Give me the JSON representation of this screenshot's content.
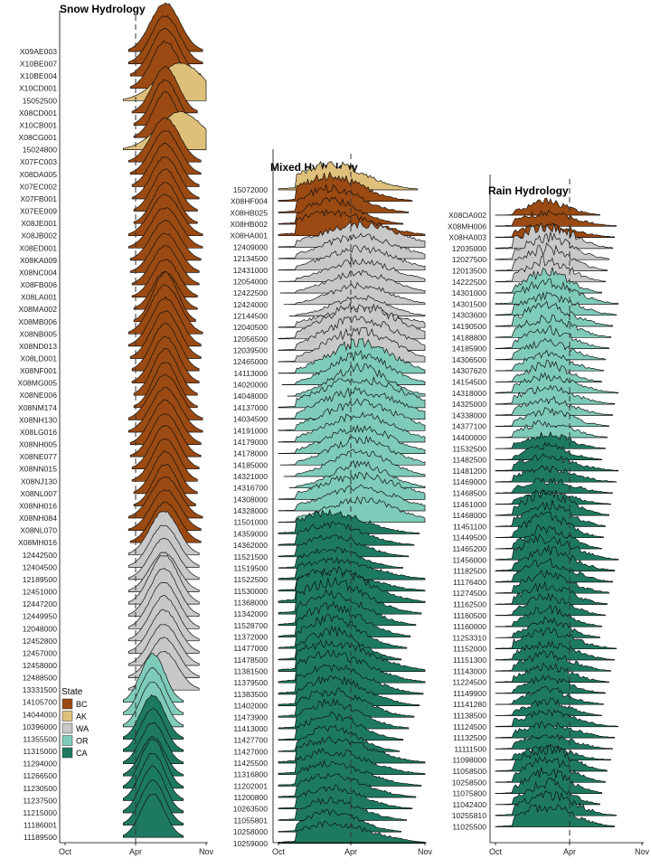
{
  "chart_data": [
    {
      "type": "area",
      "subtype": "ridgeline",
      "title": "Snow Hydrology",
      "x_ticks": [
        "Oct",
        "Apr",
        "Nov"
      ],
      "reference_line": "Apr",
      "categories": [
        "X09AE003",
        "X10BE007",
        "X10BE004",
        "X10CD001",
        "15052500",
        "X08CD001",
        "X10CB001",
        "X08CG001",
        "15024800",
        "X07FC003",
        "X08DA005",
        "X07EC002",
        "X07FB001",
        "X07EE009",
        "X08JE001",
        "X08JB002",
        "X08ED001",
        "X08KA009",
        "X08NC004",
        "X08FB006",
        "X08LA001",
        "X08MA002",
        "X08MB006",
        "X08NB005",
        "X08ND013",
        "X08LD001",
        "X08NF001",
        "X08MG005",
        "X08NE006",
        "X08NM174",
        "X08NH130",
        "X08LG016",
        "X08NH005",
        "X08NE077",
        "X08NN015",
        "X08NJ130",
        "X08NL007",
        "X08NH016",
        "X08NH084",
        "X08NL070",
        "X08MH016",
        "12442500",
        "12404500",
        "12189500",
        "12451000",
        "12447200",
        "12449950",
        "12048000",
        "12452800",
        "12457000",
        "12458000",
        "12488500",
        "13331500",
        "14105700",
        "14044000",
        "10396000",
        "11355500",
        "11315000",
        "11294000",
        "11266500",
        "11230500",
        "11237500",
        "11215000",
        "11186001",
        "11189500"
      ],
      "states": [
        "BC",
        "BC",
        "BC",
        "BC",
        "AK",
        "BC",
        "BC",
        "BC",
        "AK",
        "BC",
        "BC",
        "BC",
        "BC",
        "BC",
        "BC",
        "BC",
        "BC",
        "BC",
        "BC",
        "BC",
        "BC",
        "BC",
        "BC",
        "BC",
        "BC",
        "BC",
        "BC",
        "BC",
        "BC",
        "BC",
        "BC",
        "BC",
        "BC",
        "BC",
        "BC",
        "BC",
        "BC",
        "BC",
        "BC",
        "BC",
        "BC",
        "WA",
        "WA",
        "WA",
        "WA",
        "WA",
        "WA",
        "WA",
        "WA",
        "WA",
        "WA",
        "WA",
        "WA",
        "OR",
        "OR",
        "OR",
        "CA",
        "CA",
        "CA",
        "CA",
        "CA",
        "CA",
        "CA",
        "CA",
        "CA"
      ]
    },
    {
      "type": "area",
      "subtype": "ridgeline",
      "title": "Mixed Hydrology",
      "x_ticks": [
        "Oct",
        "Apr",
        "Nov"
      ],
      "reference_line": "Apr",
      "categories": [
        "15072000",
        "X08HF004",
        "X08HB025",
        "X08HB002",
        "X08HA001",
        "12409000",
        "12134500",
        "12431000",
        "12054000",
        "12422500",
        "12424000",
        "12144500",
        "12040500",
        "12056500",
        "12039500",
        "12465000",
        "14113000",
        "14020000",
        "14048000",
        "14137000",
        "14034500",
        "14191000",
        "14179000",
        "14178000",
        "14185000",
        "14321000",
        "14316700",
        "14308000",
        "14328000",
        "11501000",
        "14359000",
        "14362000",
        "11521500",
        "11519500",
        "11522500",
        "11530000",
        "11368000",
        "11342000",
        "11528700",
        "11372000",
        "11477000",
        "11478500",
        "11381500",
        "11379500",
        "11383500",
        "11402000",
        "11473900",
        "11413000",
        "11427700",
        "11427000",
        "11425500",
        "11316800",
        "11202001",
        "11200800",
        "10263500",
        "11055801",
        "10258000",
        "10259000"
      ],
      "states": [
        "AK",
        "BC",
        "BC",
        "BC",
        "BC",
        "WA",
        "WA",
        "WA",
        "WA",
        "WA",
        "WA",
        "WA",
        "WA",
        "WA",
        "WA",
        "WA",
        "OR",
        "OR",
        "OR",
        "OR",
        "OR",
        "OR",
        "OR",
        "OR",
        "OR",
        "OR",
        "OR",
        "OR",
        "OR",
        "OR",
        "CA",
        "CA",
        "CA",
        "CA",
        "CA",
        "CA",
        "CA",
        "CA",
        "CA",
        "CA",
        "CA",
        "CA",
        "CA",
        "CA",
        "CA",
        "CA",
        "CA",
        "CA",
        "CA",
        "CA",
        "CA",
        "CA",
        "CA",
        "CA",
        "CA",
        "CA",
        "CA",
        "CA"
      ]
    },
    {
      "type": "area",
      "subtype": "ridgeline",
      "title": "Rain Hydrology",
      "x_ticks": [
        "Oct",
        "Apr",
        "Nov"
      ],
      "reference_line": "Apr",
      "categories": [
        "X08OA002",
        "X08MH006",
        "X08HA003",
        "12035000",
        "12027500",
        "12013500",
        "14222500",
        "14301000",
        "14301500",
        "14303600",
        "14190500",
        "14188800",
        "14185900",
        "14306500",
        "14307620",
        "14154500",
        "14318000",
        "14325000",
        "14338000",
        "14377100",
        "14400000",
        "11532500",
        "11482500",
        "11481200",
        "11469000",
        "11468500",
        "11461000",
        "11468000",
        "11451100",
        "11449500",
        "11465200",
        "11456000",
        "11182500",
        "11176400",
        "11274500",
        "11162500",
        "11160500",
        "11160000",
        "11253310",
        "11152000",
        "11151300",
        "11143000",
        "11224500",
        "11149900",
        "11141280",
        "11138500",
        "11124500",
        "11132500",
        "11111500",
        "11098000",
        "11058500",
        "10258500",
        "11075800",
        "11042400",
        "10255810",
        "11025500"
      ],
      "states": [
        "BC",
        "BC",
        "BC",
        "WA",
        "WA",
        "WA",
        "WA",
        "OR",
        "OR",
        "OR",
        "OR",
        "OR",
        "OR",
        "OR",
        "OR",
        "OR",
        "OR",
        "OR",
        "OR",
        "OR",
        "OR",
        "CA",
        "CA",
        "CA",
        "CA",
        "CA",
        "CA",
        "CA",
        "CA",
        "CA",
        "CA",
        "CA",
        "CA",
        "CA",
        "CA",
        "CA",
        "CA",
        "CA",
        "CA",
        "CA",
        "CA",
        "CA",
        "CA",
        "CA",
        "CA",
        "CA",
        "CA",
        "CA",
        "CA",
        "CA",
        "CA",
        "CA",
        "CA",
        "CA",
        "CA",
        "CA"
      ]
    }
  ],
  "legend": {
    "title": "State",
    "placement": "left",
    "entries": [
      {
        "label": "BC",
        "color": "#9a4a12"
      },
      {
        "label": "AK",
        "color": "#dfc07a"
      },
      {
        "label": "WA",
        "color": "#c8c8c8"
      },
      {
        "label": "OR",
        "color": "#7fcbb9"
      },
      {
        "label": "CA",
        "color": "#1d7a60"
      }
    ]
  }
}
